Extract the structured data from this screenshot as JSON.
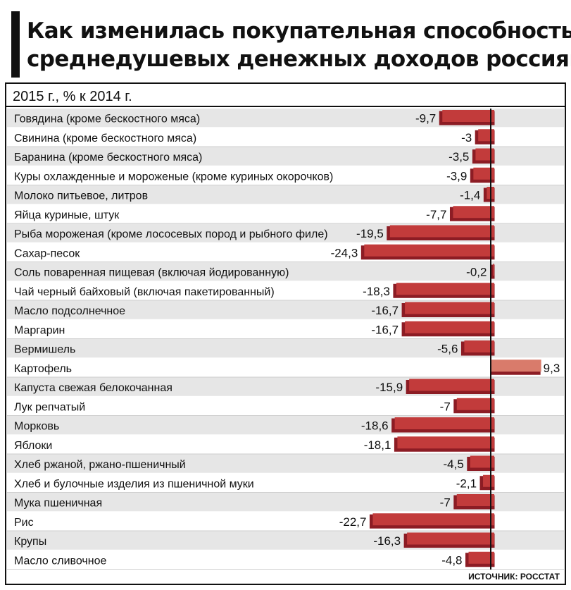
{
  "title": {
    "line1": "Как изменилась покупательная способность",
    "line2": "среднедушевых денежных доходов россиян"
  },
  "source": "ИСТОЧНИК: РОССТАТ",
  "colors": {
    "negative": "#c23b3b",
    "negative_shadow": "#8c1c24",
    "positive": "#d97b6b",
    "positive_shadow": "#8c1c24",
    "row_band": "#e6e6e6",
    "frame": "#111111"
  },
  "chart_data": {
    "type": "bar",
    "orientation": "horizontal",
    "title": "2015 г., % к 2014 г.",
    "categories": [
      "Говядина (кроме бескостного мяса)",
      "Свинина (кроме бескостного мяса)",
      "Баранина (кроме бескостного мяса)",
      "Куры охлажденные и мороженые (кроме куриных окорочков)",
      "Молоко питьевое, литров",
      "Яйца куриные, штук",
      "Рыба мороженая (кроме лососевых пород и рыбного филе)",
      "Сахар-песок",
      "Соль поваренная  пищевая (включая йодированную)",
      "Чай черный байховый (включая пакетированный)",
      "Масло подсолнечное",
      "Маргарин",
      "Вермишель",
      "Картофель",
      "Капуста свежая белокочанная",
      "Лук репчатый",
      "Морковь",
      "Яблоки",
      "Хлеб ржаной, ржано-пшеничный",
      "Хлеб и булочные изделия из пшеничной муки",
      "Мука пшеничная",
      "Рис",
      "Крупы",
      "Масло сливочное"
    ],
    "values": [
      -9.7,
      -3,
      -3.5,
      -3.9,
      -1.4,
      -7.7,
      -19.5,
      -24.3,
      -0.2,
      -18.3,
      -16.7,
      -16.7,
      -5.6,
      9.3,
      -15.9,
      -7,
      -18.6,
      -18.1,
      -4.5,
      -2.1,
      -7,
      -22.7,
      -16.3,
      -4.8
    ],
    "value_labels": [
      "-9,7",
      "-3",
      "-3,5",
      "-3,9",
      "-1,4",
      "-7,7",
      "-19,5",
      "-24,3",
      "-0,2",
      "-18,3",
      "-16,7",
      "-16,7",
      "-5,6",
      "9,3",
      "-15,9",
      "-7",
      "-18,6",
      "-18,1",
      "-4,5",
      "-2,1",
      "-7",
      "-22,7",
      "-16,3",
      "-4,8"
    ],
    "xlim": [
      -24.3,
      9.3
    ],
    "grid": false
  }
}
